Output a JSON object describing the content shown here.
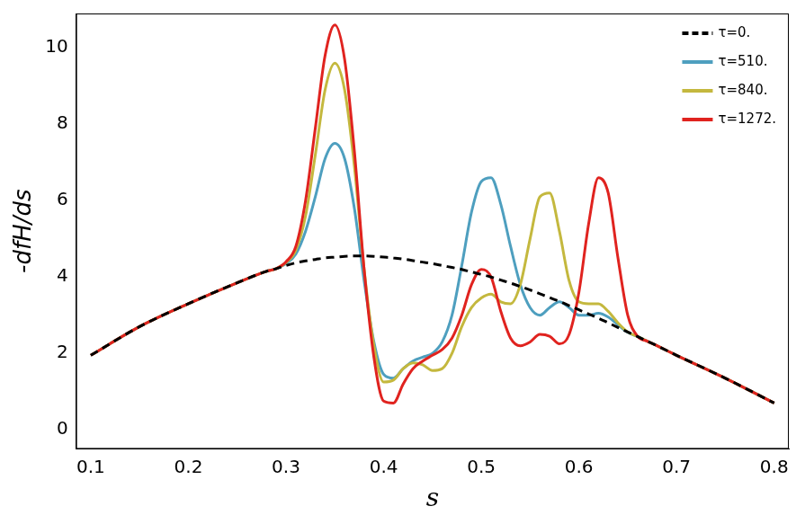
{
  "chart_data": {
    "type": "line",
    "x_label": "s",
    "y_label": "-dfH/ds",
    "x": [
      0.1,
      0.15,
      0.2,
      0.25,
      0.28,
      0.29,
      0.3,
      0.31,
      0.32,
      0.33,
      0.34,
      0.35,
      0.36,
      0.37,
      0.38,
      0.39,
      0.4,
      0.41,
      0.42,
      0.43,
      0.44,
      0.45,
      0.46,
      0.47,
      0.48,
      0.49,
      0.5,
      0.51,
      0.52,
      0.53,
      0.54,
      0.55,
      0.56,
      0.57,
      0.58,
      0.59,
      0.6,
      0.61,
      0.62,
      0.63,
      0.64,
      0.65,
      0.66,
      0.67,
      0.68,
      0.7,
      0.75,
      0.8
    ],
    "series": [
      {
        "name": "τ=0.",
        "color": "#000000",
        "line_style": "dashed",
        "values": [
          1.95,
          2.7,
          3.3,
          3.85,
          4.15,
          4.22,
          4.3,
          4.37,
          4.42,
          4.46,
          4.5,
          4.52,
          4.54,
          4.55,
          4.55,
          4.54,
          4.52,
          4.5,
          4.47,
          4.43,
          4.39,
          4.35,
          4.3,
          4.25,
          4.2,
          4.13,
          4.07,
          4.0,
          3.92,
          3.84,
          3.75,
          3.66,
          3.56,
          3.46,
          3.36,
          3.25,
          3.14,
          3.03,
          2.92,
          2.8,
          2.68,
          2.56,
          2.44,
          2.32,
          2.2,
          1.95,
          1.35,
          0.7
        ]
      },
      {
        "name": "τ=510.",
        "color": "#4e9fbf",
        "line_style": "solid",
        "values": [
          1.95,
          2.7,
          3.3,
          3.85,
          4.15,
          4.22,
          4.35,
          4.6,
          5.2,
          6.1,
          7.1,
          7.5,
          7.1,
          5.8,
          3.9,
          2.3,
          1.45,
          1.35,
          1.6,
          1.8,
          1.9,
          2.0,
          2.3,
          3.0,
          4.3,
          5.7,
          6.5,
          6.6,
          5.9,
          4.8,
          3.8,
          3.2,
          3.0,
          3.2,
          3.35,
          3.2,
          3.0,
          3.0,
          3.05,
          2.95,
          2.75,
          2.55,
          2.44,
          2.32,
          2.2,
          1.95,
          1.35,
          0.7
        ]
      },
      {
        "name": "τ=840.",
        "color": "#c4b83e",
        "line_style": "solid",
        "values": [
          1.95,
          2.7,
          3.3,
          3.85,
          4.15,
          4.22,
          4.38,
          4.7,
          5.6,
          7.2,
          8.9,
          9.6,
          8.9,
          6.9,
          4.2,
          2.2,
          1.25,
          1.3,
          1.6,
          1.75,
          1.7,
          1.55,
          1.6,
          2.0,
          2.7,
          3.2,
          3.45,
          3.55,
          3.35,
          3.3,
          3.8,
          5.0,
          6.1,
          6.2,
          5.2,
          3.9,
          3.35,
          3.3,
          3.3,
          3.1,
          2.8,
          2.56,
          2.44,
          2.32,
          2.2,
          1.95,
          1.35,
          0.7
        ]
      },
      {
        "name": "τ=1272.",
        "color": "#e0231f",
        "line_style": "solid",
        "values": [
          1.95,
          2.7,
          3.3,
          3.85,
          4.15,
          4.22,
          4.4,
          4.8,
          6.0,
          7.9,
          9.8,
          10.6,
          9.7,
          7.3,
          4.2,
          1.9,
          0.75,
          0.7,
          1.2,
          1.6,
          1.8,
          1.95,
          2.1,
          2.4,
          3.0,
          3.8,
          4.2,
          4.0,
          3.1,
          2.4,
          2.2,
          2.3,
          2.5,
          2.45,
          2.25,
          2.5,
          3.6,
          5.4,
          6.6,
          6.2,
          4.5,
          3.0,
          2.45,
          2.32,
          2.2,
          1.95,
          1.35,
          0.7
        ]
      }
    ],
    "xlim": [
      0.085,
      0.815
    ],
    "ylim": [
      -0.5,
      10.9
    ],
    "xticks": [
      0.1,
      0.2,
      0.3,
      0.4,
      0.5,
      0.6,
      0.7,
      0.8
    ],
    "yticks": [
      0,
      2,
      4,
      6,
      8,
      10
    ],
    "grid": false,
    "legend": "upper right"
  }
}
